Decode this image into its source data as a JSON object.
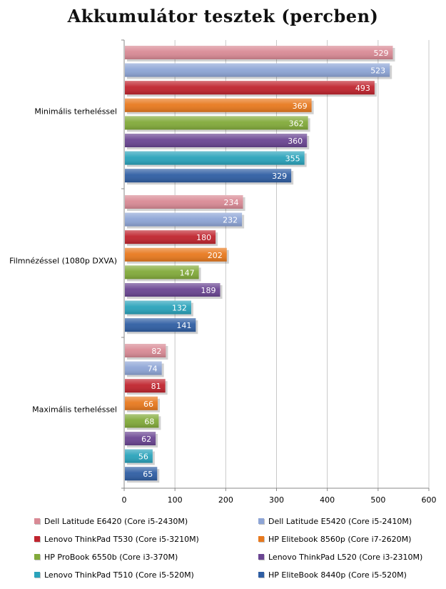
{
  "chart_data": {
    "type": "bar",
    "orientation": "horizontal",
    "title": "Akkumulátor tesztek (percben)",
    "categories": [
      "Minimális terheléssel",
      "Filmnézéssel (1080p DXVA)",
      "Maximális terheléssel"
    ],
    "xlim": [
      0,
      600
    ],
    "xticks": [
      0,
      100,
      200,
      300,
      400,
      500,
      600
    ],
    "grid": true,
    "legend_position": "bottom",
    "series": [
      {
        "name": "Dell Latitude E6420 (Core i5-2430M)",
        "color": "#d98a95",
        "values": [
          529,
          234,
          82
        ]
      },
      {
        "name": "Dell Latitude E5420 (Core i5-2410M)",
        "color": "#8ea5d6",
        "values": [
          523,
          232,
          74
        ]
      },
      {
        "name": "Lenovo ThinkPad T530 (Core i5-3210M)",
        "color": "#c0242e",
        "values": [
          493,
          180,
          81
        ]
      },
      {
        "name": "HP Elitebook 8560p (Core i7-2620M)",
        "color": "#e8791e",
        "values": [
          369,
          202,
          66
        ]
      },
      {
        "name": "HP ProBook 6550b (Core i3-370M)",
        "color": "#82aa3a",
        "values": [
          362,
          147,
          68
        ]
      },
      {
        "name": "Lenovo ThinkPad L520 (Core i3-2310M)",
        "color": "#6a4592",
        "values": [
          360,
          189,
          62
        ]
      },
      {
        "name": "Lenovo ThinkPad T510 (Core i5-520M)",
        "color": "#2aa3bb",
        "values": [
          355,
          132,
          56
        ]
      },
      {
        "name": "HP EliteBook 8440p (Core i5-520M)",
        "color": "#2f5ea3",
        "values": [
          329,
          141,
          65
        ]
      }
    ]
  }
}
